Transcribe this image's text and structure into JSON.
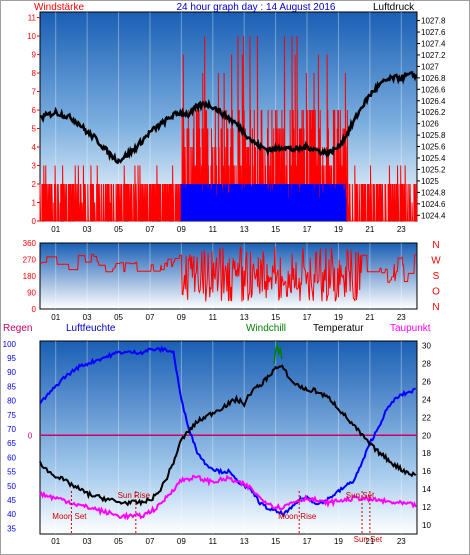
{
  "header": {
    "left_title": "Windstärke",
    "center_title": "24 hour graph day : 14 August 2016",
    "right_title": "Luftdruck"
  },
  "panel3_labels": {
    "regen": "Regen",
    "luftfeuchte": "Luftfeuchte",
    "windchill": "Windchill",
    "temperatur": "Temperatur",
    "taupunkt": "Taupunkt"
  },
  "colors": {
    "wind_speed": "#ff0000",
    "wind_gust_bars": "#0000ff",
    "pressure": "#000000",
    "wind_direction": "#ff0000",
    "humidity": "#0000ff",
    "temperature": "#000000",
    "dewpoint": "#ff00ff",
    "windchill": "#008000",
    "rain": "#cc0066",
    "panel_gradient_top": "#1a5fb4",
    "panel_gradient_bottom": "#ffffff"
  },
  "chart_data": [
    {
      "type": "line",
      "name": "wind-and-pressure",
      "x_tick_labels": [
        "01",
        "03",
        "05",
        "07",
        "09",
        "11",
        "13",
        "15",
        "17",
        "19",
        "21",
        "23"
      ],
      "left_ticks": [
        0,
        1,
        2,
        3,
        4,
        5,
        6,
        7,
        8,
        9,
        10,
        11
      ],
      "left_ylim": [
        0,
        11.3
      ],
      "right_ticks": [
        "1024.4",
        "1024.6",
        "1024.8",
        "1025",
        "1025.2",
        "1025.4",
        "1025.6",
        "1025.8",
        "1026",
        "1026.2",
        "1026.4",
        "1026.6",
        "1026.8",
        "1027",
        "1027.2",
        "1027.4",
        "1027.6",
        "1027.8"
      ],
      "right_ylim": [
        1024.3,
        1027.95
      ],
      "xlim": [
        0,
        24
      ],
      "pressure": {
        "x": [
          0,
          0.5,
          1,
          1.5,
          2,
          2.5,
          3,
          3.5,
          4,
          4.5,
          5,
          5.5,
          6,
          6.5,
          7,
          7.5,
          8,
          8.5,
          9,
          9.5,
          10,
          10.5,
          11,
          11.5,
          12,
          12.5,
          13,
          13.5,
          14,
          14.5,
          15,
          15.5,
          16,
          16.5,
          17,
          17.5,
          18,
          18.5,
          19,
          19.5,
          20,
          20.5,
          21,
          21.5,
          22,
          22.5,
          23,
          23.5,
          24
        ],
        "y": [
          1026.1,
          1026.15,
          1026.2,
          1026.15,
          1026.1,
          1026.0,
          1025.85,
          1025.75,
          1025.6,
          1025.45,
          1025.35,
          1025.45,
          1025.55,
          1025.7,
          1025.85,
          1025.95,
          1026.05,
          1026.15,
          1026.2,
          1026.15,
          1026.3,
          1026.35,
          1026.3,
          1026.2,
          1026.1,
          1026.0,
          1025.85,
          1025.7,
          1025.6,
          1025.55,
          1025.55,
          1025.6,
          1025.55,
          1025.55,
          1025.6,
          1025.55,
          1025.5,
          1025.5,
          1025.6,
          1025.8,
          1026.05,
          1026.3,
          1026.5,
          1026.65,
          1026.75,
          1026.8,
          1026.8,
          1026.85,
          1026.85
        ]
      },
      "wind_speed_pattern": [
        2,
        3,
        1,
        2,
        3,
        2,
        3,
        1,
        2,
        3
      ]
    },
    {
      "type": "line",
      "name": "wind-direction",
      "right_labels": [
        "N",
        "W",
        "S",
        "O",
        "N"
      ],
      "left_ticks": [
        "0",
        "90",
        "180",
        "270",
        "360"
      ],
      "ylim": [
        0,
        360
      ],
      "xlim": [
        0,
        24
      ]
    },
    {
      "type": "line",
      "name": "temperature-humidity",
      "left_ticks": [
        "35",
        "40",
        "45",
        "50",
        "55",
        "60",
        "65",
        "70",
        "75",
        "80",
        "85",
        "90",
        "95",
        "100"
      ],
      "left_ylim": [
        33,
        101
      ],
      "right_ticks": [
        "10",
        "12",
        "14",
        "16",
        "18",
        "20",
        "22",
        "24",
        "26",
        "28",
        "30"
      ],
      "right_ylim": [
        9,
        30.5
      ],
      "rain_value_label": "0",
      "xlim": [
        0,
        24
      ],
      "humidity": {
        "x": [
          0,
          0.5,
          1,
          1.5,
          2,
          2.5,
          3,
          3.5,
          4,
          4.5,
          5,
          5.5,
          6,
          6.5,
          7,
          7.5,
          8,
          8.5,
          9,
          9.5,
          10,
          10.5,
          11,
          11.5,
          12,
          12.5,
          13,
          13.5,
          14,
          14.5,
          15,
          15.5,
          16,
          16.5,
          17,
          17.5,
          18,
          18.5,
          19,
          19.5,
          20,
          20.5,
          21,
          21.5,
          22,
          22.5,
          23,
          23.5,
          24
        ],
        "y": [
          79,
          82,
          85,
          88,
          90,
          92,
          93,
          94,
          95,
          96,
          97,
          97,
          97,
          97,
          98,
          98,
          98,
          97,
          80,
          70,
          62,
          58,
          56,
          55,
          55,
          52,
          50,
          48,
          44,
          42,
          41,
          40,
          42,
          45,
          46,
          44,
          44,
          46,
          48,
          50,
          52,
          58,
          65,
          70,
          76,
          80,
          82,
          83,
          84
        ]
      },
      "temperature": {
        "x": [
          0,
          0.5,
          1,
          1.5,
          2,
          2.5,
          3,
          3.5,
          4,
          4.5,
          5,
          5.5,
          6,
          6.5,
          7,
          7.5,
          8,
          8.5,
          9,
          9.5,
          10,
          10.5,
          11,
          11.5,
          12,
          12.5,
          13,
          13.5,
          14,
          14.5,
          15,
          15.5,
          16,
          16.5,
          17,
          17.5,
          18,
          18.5,
          19,
          19.5,
          20,
          20.5,
          21,
          21.5,
          22,
          22.5,
          23,
          23.5,
          24
        ],
        "y": [
          17,
          16,
          15.5,
          15,
          14.5,
          14,
          13.5,
          13.2,
          13,
          12.8,
          12.5,
          12.5,
          12.5,
          12.5,
          12.8,
          13.5,
          15,
          17,
          19.5,
          20.5,
          21.5,
          22,
          22.5,
          23,
          23.5,
          24,
          23.5,
          25,
          25.5,
          26.5,
          27.5,
          27.5,
          26,
          25.5,
          25,
          25,
          24.5,
          24,
          23,
          22,
          21,
          20,
          19,
          18.2,
          17.5,
          16.8,
          16.2,
          15.8,
          15.5
        ]
      },
      "dewpoint": {
        "x": [
          0,
          0.5,
          1,
          1.5,
          2,
          2.5,
          3,
          3.5,
          4,
          4.5,
          5,
          5.5,
          6,
          6.5,
          7,
          7.5,
          8,
          8.5,
          9,
          9.5,
          10,
          10.5,
          11,
          11.5,
          12,
          12.5,
          13,
          13.5,
          14,
          14.5,
          15,
          15.5,
          16,
          16.5,
          17,
          17.5,
          18,
          18.5,
          19,
          19.5,
          20,
          20.5,
          21,
          21.5,
          22,
          22.5,
          23,
          23.5,
          24
        ],
        "y": [
          13.5,
          13.2,
          13,
          12.8,
          12.5,
          12.2,
          12,
          11.8,
          11.5,
          11.3,
          11,
          11,
          11,
          11,
          11.5,
          12,
          13,
          14,
          15,
          15.2,
          15.3,
          15,
          14.8,
          15,
          15.2,
          14.8,
          14.5,
          14,
          13,
          12.5,
          12,
          12,
          12.5,
          12.8,
          13,
          12.8,
          12.5,
          12.5,
          12.7,
          12.8,
          13,
          13,
          12.8,
          12.8,
          12.6,
          12.5,
          12.4,
          12.3,
          12.2
        ]
      },
      "windchill": {
        "x": [
          14.9,
          15.0,
          15.1,
          15.2,
          15.3,
          15.4
        ],
        "y": [
          28,
          29.5,
          30,
          29,
          29.8,
          28.5
        ]
      },
      "events": [
        {
          "label": "Sun Rise",
          "x": 6.1
        },
        {
          "label": "Moon Set",
          "x": 2.0
        },
        {
          "label": "Moon Rise",
          "x": 16.5
        },
        {
          "label": "Sun Set",
          "x": 20.5
        },
        {
          "label": "Sun Set",
          "x": 21.0
        }
      ]
    }
  ]
}
